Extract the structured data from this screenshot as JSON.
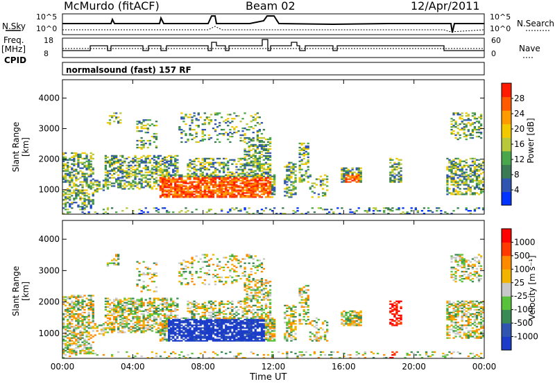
{
  "header": {
    "station": "McMurdo (fitACF)",
    "beam": "Beam 02",
    "date": "12/Apr/2011"
  },
  "top_panels": {
    "nsky_label": "N.Sky",
    "nsky_ticks": [
      "10^5",
      "10^0"
    ],
    "nsearch_label": "N.Search",
    "nsearch_ticks": [
      "10^5",
      "10^0"
    ],
    "freq_label_1": "Freq.",
    "freq_label_2": "[MHz]",
    "freq_ticks": [
      "18",
      "8"
    ],
    "nave_label": "Nave",
    "nave_ticks": [
      "60",
      "0"
    ],
    "cpid_label": "CPID",
    "cpid_value": "normalsound (fast) 157 RF"
  },
  "chart_data": [
    {
      "type": "heatmap",
      "name": "power",
      "ylabel": "Slant Range [km]",
      "yticks": [
        "4000",
        "3000",
        "2000",
        "1000"
      ],
      "ytick_values": [
        4000,
        3000,
        2000,
        1000
      ],
      "ylim": [
        200,
        4600
      ],
      "xlim_hours": [
        0,
        24
      ],
      "colorbar_label": "Power [dB]",
      "colorbar_ticks": [
        "28",
        "24",
        "20",
        "16",
        "12",
        "8",
        "4"
      ],
      "colors": [
        "#0033ff",
        "#2f55b0",
        "#3a7a55",
        "#4aa64a",
        "#b7c93a",
        "#f2c800",
        "#ff9a00",
        "#ff5a00",
        "#ff1a00"
      ]
    },
    {
      "type": "heatmap",
      "name": "velocity",
      "ylabel": "Slant Range [km]",
      "yticks": [
        "4000",
        "3000",
        "2000",
        "1000"
      ],
      "ytick_values": [
        4000,
        3000,
        2000,
        1000
      ],
      "ylim": [
        200,
        4600
      ],
      "xlim_hours": [
        0,
        24
      ],
      "colorbar_label": "Velocity [m s⁻¹]",
      "colorbar_ticks": [
        "1000",
        "500",
        "100",
        "25",
        "-25",
        "-100",
        "-500",
        "-1000"
      ],
      "colors": [
        "#1a3cc8",
        "#2f55b0",
        "#3a8a55",
        "#59c23a",
        "#c8c8c8",
        "#f2b400",
        "#ff8a00",
        "#ff3a00",
        "#ff0000"
      ]
    }
  ],
  "xaxis": {
    "ticks": [
      "00:00",
      "04:00",
      "08:00",
      "12:00",
      "16:00",
      "20:00",
      "00:00"
    ],
    "tick_hours": [
      0,
      4,
      8,
      12,
      16,
      20,
      24
    ],
    "label": "Time UT"
  }
}
